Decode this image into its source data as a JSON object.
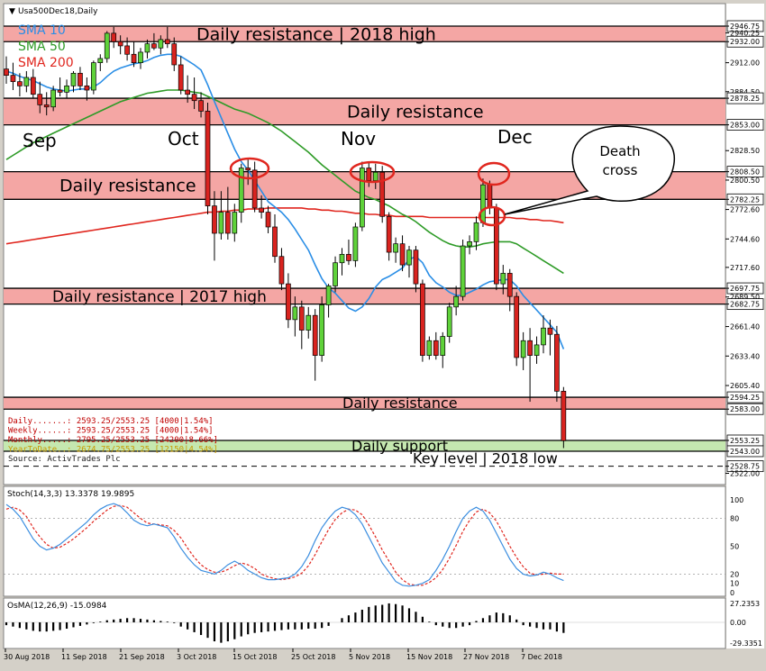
{
  "window_title": "Usa500Dec18,Daily",
  "colors": {
    "resistance_band": "#f4a6a4",
    "support_band": "#c5e8b0",
    "bull_candle": "#5fd23a",
    "bear_candle": "#d9231f",
    "sma10": "#2a8ee6",
    "sma50": "#2e9b27",
    "sma200": "#e0261e",
    "stoch_main": "#3b8ee0",
    "stoch_signal": "#e0261e",
    "annotation_circle": "#e0261e",
    "level_line": "#000000",
    "info_text": "#c00000"
  },
  "legend": [
    {
      "label": "SMA 10",
      "color": "#2a8ee6"
    },
    {
      "label": "SMA 50",
      "color": "#2e9b27"
    },
    {
      "label": "SMA 200",
      "color": "#e0261e"
    }
  ],
  "info_lines": [
    {
      "text": "Daily.......: 2593.25/2553.25 [4000|1.54%]",
      "color": "#c00000"
    },
    {
      "text": "Weekly......: 2593.25/2553.25 [4000|1.54%]",
      "color": "#c00000"
    },
    {
      "text": "Monthly.....: 2795.25/2553.25 [24200|8.66%]",
      "color": "#c00000"
    },
    {
      "text": "YearToDate..: 2674.75/2553.25 [12150|4.54%]",
      "color": "#c89a00"
    },
    {
      "text": "Source: ActivTrades Plc",
      "color": "#202020"
    }
  ],
  "zones": [
    {
      "label": "Daily resistance  | 2018 high",
      "kind": "resistance",
      "from": 2932,
      "to": 2946.75
    },
    {
      "label": "Daily resistance",
      "kind": "resistance",
      "from": 2853,
      "to": 2878.25
    },
    {
      "label": "Daily resistance",
      "kind": "resistance",
      "from": 2782.25,
      "to": 2808.5
    },
    {
      "label": "Daily resistance | 2017 high",
      "kind": "resistance",
      "from": 2682.75,
      "to": 2697.75
    },
    {
      "label": "Daily resistance",
      "kind": "resistance",
      "from": 2583,
      "to": 2594.25
    },
    {
      "label": "Daily support",
      "kind": "support",
      "from": 2543,
      "to": 2553.25
    }
  ],
  "key_level": {
    "label": "Key level | 2018 low",
    "value": 2528.75
  },
  "month_labels": [
    "Sep",
    "Oct",
    "Nov",
    "Dec"
  ],
  "annotation": {
    "text_line1": "Death",
    "text_line2": "cross"
  },
  "stoch": {
    "label": "Stoch(14,3,3) 13.3378 19.9895",
    "ticks": [
      "100",
      "80",
      "50",
      "20",
      "10",
      "0"
    ]
  },
  "osma": {
    "label": "OsMA(12,26,9) -15.0984",
    "ticks": [
      "27.2353",
      "0.00",
      "-29.3351"
    ]
  },
  "x_labels": [
    "30 Aug 2018",
    "11 Sep 2018",
    "21 Sep 2018",
    "3 Oct 2018",
    "15 Oct 2018",
    "25 Oct 2018",
    "5 Nov 2018",
    "15 Nov 2018",
    "27 Nov 2018",
    "7 Dec 2018"
  ],
  "chart_data": {
    "type": "candlestick",
    "symbol": "Usa500Dec18",
    "timeframe": "Daily",
    "y_axis_labels": [
      "2946.75",
      "2940.25",
      "2932.00",
      "2912.00",
      "2884.50",
      "2878.25",
      "2853.00",
      "2828.50",
      "2808.50",
      "2800.50",
      "2782.25",
      "2772.60",
      "2744.60",
      "2717.60",
      "2697.75",
      "2689.50",
      "2682.75",
      "2661.40",
      "2633.40",
      "2605.40",
      "2594.25",
      "2583.00",
      "2553.25",
      "2543.00",
      "2528.75",
      "2522.00"
    ],
    "ylim": [
      2522,
      2956
    ],
    "candles": [
      {
        "o": 2906,
        "h": 2918,
        "l": 2892,
        "c": 2900
      },
      {
        "o": 2900,
        "h": 2912,
        "l": 2886,
        "c": 2894
      },
      {
        "o": 2894,
        "h": 2902,
        "l": 2880,
        "c": 2890
      },
      {
        "o": 2890,
        "h": 2904,
        "l": 2884,
        "c": 2898
      },
      {
        "o": 2898,
        "h": 2906,
        "l": 2878,
        "c": 2882
      },
      {
        "o": 2882,
        "h": 2894,
        "l": 2864,
        "c": 2872
      },
      {
        "o": 2872,
        "h": 2884,
        "l": 2862,
        "c": 2870
      },
      {
        "o": 2870,
        "h": 2890,
        "l": 2866,
        "c": 2886
      },
      {
        "o": 2886,
        "h": 2898,
        "l": 2880,
        "c": 2884
      },
      {
        "o": 2884,
        "h": 2896,
        "l": 2878,
        "c": 2890
      },
      {
        "o": 2890,
        "h": 2904,
        "l": 2884,
        "c": 2902
      },
      {
        "o": 2902,
        "h": 2908,
        "l": 2886,
        "c": 2890
      },
      {
        "o": 2890,
        "h": 2898,
        "l": 2876,
        "c": 2886
      },
      {
        "o": 2886,
        "h": 2914,
        "l": 2882,
        "c": 2912
      },
      {
        "o": 2912,
        "h": 2920,
        "l": 2904,
        "c": 2916
      },
      {
        "o": 2916,
        "h": 2942,
        "l": 2912,
        "c": 2940
      },
      {
        "o": 2940,
        "h": 2946,
        "l": 2926,
        "c": 2932
      },
      {
        "o": 2932,
        "h": 2938,
        "l": 2920,
        "c": 2928
      },
      {
        "o": 2928,
        "h": 2936,
        "l": 2914,
        "c": 2920
      },
      {
        "o": 2920,
        "h": 2932,
        "l": 2908,
        "c": 2912
      },
      {
        "o": 2912,
        "h": 2926,
        "l": 2906,
        "c": 2922
      },
      {
        "o": 2922,
        "h": 2934,
        "l": 2916,
        "c": 2930
      },
      {
        "o": 2930,
        "h": 2940,
        "l": 2924,
        "c": 2926
      },
      {
        "o": 2926,
        "h": 2938,
        "l": 2920,
        "c": 2934
      },
      {
        "o": 2934,
        "h": 2946,
        "l": 2926,
        "c": 2930
      },
      {
        "o": 2930,
        "h": 2936,
        "l": 2904,
        "c": 2910
      },
      {
        "o": 2910,
        "h": 2918,
        "l": 2882,
        "c": 2886
      },
      {
        "o": 2886,
        "h": 2900,
        "l": 2874,
        "c": 2882
      },
      {
        "o": 2882,
        "h": 2898,
        "l": 2868,
        "c": 2876
      },
      {
        "o": 2876,
        "h": 2884,
        "l": 2860,
        "c": 2866
      },
      {
        "o": 2866,
        "h": 2874,
        "l": 2768,
        "c": 2776
      },
      {
        "o": 2776,
        "h": 2790,
        "l": 2724,
        "c": 2750
      },
      {
        "o": 2750,
        "h": 2790,
        "l": 2744,
        "c": 2770
      },
      {
        "o": 2770,
        "h": 2794,
        "l": 2744,
        "c": 2750
      },
      {
        "o": 2750,
        "h": 2778,
        "l": 2742,
        "c": 2770
      },
      {
        "o": 2770,
        "h": 2816,
        "l": 2760,
        "c": 2812
      },
      {
        "o": 2812,
        "h": 2820,
        "l": 2796,
        "c": 2810
      },
      {
        "o": 2810,
        "h": 2818,
        "l": 2770,
        "c": 2774
      },
      {
        "o": 2774,
        "h": 2786,
        "l": 2764,
        "c": 2770
      },
      {
        "o": 2770,
        "h": 2776,
        "l": 2750,
        "c": 2756
      },
      {
        "o": 2756,
        "h": 2768,
        "l": 2722,
        "c": 2728
      },
      {
        "o": 2728,
        "h": 2736,
        "l": 2696,
        "c": 2702
      },
      {
        "o": 2702,
        "h": 2712,
        "l": 2660,
        "c": 2668
      },
      {
        "o": 2668,
        "h": 2690,
        "l": 2652,
        "c": 2680
      },
      {
        "o": 2680,
        "h": 2686,
        "l": 2640,
        "c": 2658
      },
      {
        "o": 2658,
        "h": 2680,
        "l": 2650,
        "c": 2672
      },
      {
        "o": 2672,
        "h": 2678,
        "l": 2610,
        "c": 2634
      },
      {
        "o": 2634,
        "h": 2690,
        "l": 2628,
        "c": 2682
      },
      {
        "o": 2682,
        "h": 2702,
        "l": 2670,
        "c": 2700
      },
      {
        "o": 2700,
        "h": 2728,
        "l": 2694,
        "c": 2722
      },
      {
        "o": 2722,
        "h": 2736,
        "l": 2710,
        "c": 2730
      },
      {
        "o": 2730,
        "h": 2744,
        "l": 2720,
        "c": 2724
      },
      {
        "o": 2724,
        "h": 2760,
        "l": 2718,
        "c": 2756
      },
      {
        "o": 2756,
        "h": 2818,
        "l": 2752,
        "c": 2812
      },
      {
        "o": 2812,
        "h": 2818,
        "l": 2794,
        "c": 2800
      },
      {
        "o": 2800,
        "h": 2816,
        "l": 2792,
        "c": 2808
      },
      {
        "o": 2808,
        "h": 2814,
        "l": 2760,
        "c": 2766
      },
      {
        "o": 2766,
        "h": 2770,
        "l": 2724,
        "c": 2732
      },
      {
        "o": 2732,
        "h": 2746,
        "l": 2722,
        "c": 2740
      },
      {
        "o": 2740,
        "h": 2748,
        "l": 2714,
        "c": 2720
      },
      {
        "o": 2720,
        "h": 2738,
        "l": 2708,
        "c": 2734
      },
      {
        "o": 2734,
        "h": 2738,
        "l": 2694,
        "c": 2702
      },
      {
        "o": 2702,
        "h": 2706,
        "l": 2628,
        "c": 2634
      },
      {
        "o": 2634,
        "h": 2652,
        "l": 2630,
        "c": 2648
      },
      {
        "o": 2648,
        "h": 2656,
        "l": 2630,
        "c": 2634
      },
      {
        "o": 2634,
        "h": 2656,
        "l": 2622,
        "c": 2652
      },
      {
        "o": 2652,
        "h": 2684,
        "l": 2646,
        "c": 2680
      },
      {
        "o": 2680,
        "h": 2700,
        "l": 2672,
        "c": 2690
      },
      {
        "o": 2690,
        "h": 2744,
        "l": 2686,
        "c": 2738
      },
      {
        "o": 2738,
        "h": 2748,
        "l": 2730,
        "c": 2742
      },
      {
        "o": 2742,
        "h": 2766,
        "l": 2734,
        "c": 2760
      },
      {
        "o": 2760,
        "h": 2802,
        "l": 2756,
        "c": 2796
      },
      {
        "o": 2796,
        "h": 2800,
        "l": 2768,
        "c": 2774
      },
      {
        "o": 2774,
        "h": 2778,
        "l": 2696,
        "c": 2702
      },
      {
        "o": 2702,
        "h": 2720,
        "l": 2692,
        "c": 2712
      },
      {
        "o": 2712,
        "h": 2716,
        "l": 2676,
        "c": 2690
      },
      {
        "o": 2690,
        "h": 2694,
        "l": 2624,
        "c": 2632
      },
      {
        "o": 2632,
        "h": 2656,
        "l": 2620,
        "c": 2648
      },
      {
        "o": 2648,
        "h": 2660,
        "l": 2590,
        "c": 2634
      },
      {
        "o": 2634,
        "h": 2652,
        "l": 2626,
        "c": 2644
      },
      {
        "o": 2644,
        "h": 2672,
        "l": 2636,
        "c": 2660
      },
      {
        "o": 2660,
        "h": 2668,
        "l": 2634,
        "c": 2654
      },
      {
        "o": 2654,
        "h": 2662,
        "l": 2590,
        "c": 2600
      },
      {
        "o": 2600,
        "h": 2604,
        "l": 2546,
        "c": 2553
      }
    ],
    "sma10": [
      2904,
      2902,
      2899,
      2897,
      2895,
      2892,
      2889,
      2887,
      2886,
      2885,
      2886,
      2887,
      2887,
      2889,
      2893,
      2899,
      2904,
      2907,
      2909,
      2911,
      2912,
      2914,
      2917,
      2919,
      2920,
      2920,
      2918,
      2914,
      2910,
      2905,
      2891,
      2875,
      2860,
      2845,
      2830,
      2818,
      2810,
      2800,
      2790,
      2780,
      2775,
      2770,
      2763,
      2754,
      2744,
      2734,
      2720,
      2707,
      2698,
      2693,
      2686,
      2679,
      2676,
      2680,
      2688,
      2699,
      2706,
      2709,
      2713,
      2717,
      2725,
      2728,
      2722,
      2710,
      2703,
      2699,
      2694,
      2691,
      2691,
      2694,
      2697,
      2701,
      2704,
      2705,
      2706,
      2706,
      2700,
      2691,
      2684,
      2677,
      2670,
      2663,
      2656,
      2640
    ],
    "sma50": [
      2820,
      2824,
      2828,
      2832,
      2836,
      2839,
      2842,
      2845,
      2848,
      2851,
      2854,
      2857,
      2860,
      2863,
      2866,
      2869,
      2872,
      2875,
      2877,
      2879,
      2881,
      2883,
      2884,
      2885,
      2886,
      2886,
      2886,
      2885,
      2884,
      2883,
      2880,
      2877,
      2874,
      2871,
      2868,
      2866,
      2864,
      2861,
      2858,
      2855,
      2851,
      2847,
      2842,
      2837,
      2832,
      2827,
      2821,
      2815,
      2810,
      2805,
      2800,
      2795,
      2790,
      2787,
      2784,
      2782,
      2779,
      2776,
      2772,
      2768,
      2765,
      2761,
      2756,
      2751,
      2747,
      2743,
      2740,
      2738,
      2737,
      2737,
      2738,
      2740,
      2741,
      2742,
      2742,
      2742,
      2740,
      2736,
      2732,
      2728,
      2724,
      2720,
      2716,
      2712
    ],
    "sma200": [
      2740,
      2741,
      2742,
      2743,
      2744,
      2745,
      2746,
      2747,
      2748,
      2749,
      2750,
      2751,
      2752,
      2753,
      2754,
      2755,
      2756,
      2757,
      2758,
      2759,
      2760,
      2761,
      2762,
      2763,
      2764,
      2765,
      2766,
      2767,
      2768,
      2769,
      2770,
      2770,
      2771,
      2771,
      2772,
      2772,
      2773,
      2773,
      2773,
      2774,
      2774,
      2774,
      2774,
      2774,
      2774,
      2773,
      2773,
      2772,
      2772,
      2771,
      2771,
      2770,
      2769,
      2769,
      2768,
      2768,
      2767,
      2767,
      2766,
      2766,
      2766,
      2766,
      2766,
      2765,
      2765,
      2765,
      2765,
      2765,
      2765,
      2765,
      2765,
      2765,
      2765,
      2765,
      2765,
      2765,
      2764,
      2764,
      2763,
      2763,
      2762,
      2762,
      2761,
      2760
    ],
    "stoch_main": [
      95,
      90,
      82,
      70,
      58,
      50,
      46,
      48,
      52,
      58,
      64,
      70,
      76,
      84,
      90,
      94,
      96,
      93,
      86,
      78,
      74,
      72,
      74,
      72,
      70,
      60,
      48,
      38,
      30,
      24,
      22,
      20,
      24,
      30,
      34,
      30,
      24,
      20,
      16,
      14,
      14,
      15,
      16,
      20,
      28,
      40,
      56,
      70,
      80,
      88,
      92,
      90,
      84,
      74,
      60,
      46,
      32,
      22,
      12,
      8,
      7,
      8,
      10,
      14,
      24,
      36,
      50,
      66,
      80,
      88,
      92,
      88,
      78,
      64,
      50,
      36,
      26,
      20,
      18,
      19,
      22,
      20,
      16,
      13
    ],
    "stoch_signal": [
      90,
      92,
      89,
      82,
      70,
      60,
      52,
      48,
      49,
      53,
      58,
      64,
      70,
      77,
      83,
      89,
      93,
      94,
      92,
      86,
      80,
      75,
      74,
      73,
      72,
      67,
      59,
      48,
      38,
      30,
      25,
      22,
      22,
      25,
      29,
      32,
      30,
      26,
      20,
      17,
      15,
      14,
      15,
      17,
      21,
      29,
      41,
      55,
      68,
      79,
      86,
      90,
      89,
      84,
      73,
      60,
      46,
      34,
      22,
      14,
      9,
      8,
      8,
      11,
      16,
      25,
      37,
      51,
      66,
      78,
      87,
      90,
      86,
      77,
      64,
      50,
      38,
      28,
      21,
      19,
      20,
      21,
      20,
      20
    ],
    "osma": [
      -4,
      -6,
      -8,
      -10,
      -12,
      -13,
      -13,
      -12,
      -11,
      -9,
      -7,
      -5,
      -3,
      -1,
      1,
      3,
      4,
      5,
      6,
      6,
      5,
      4,
      3,
      2,
      1,
      -1,
      -6,
      -10,
      -14,
      -18,
      -22,
      -27,
      -29,
      -27,
      -24,
      -20,
      -17,
      -15,
      -14,
      -13,
      -12,
      -11,
      -10,
      -10,
      -10,
      -9,
      -9,
      -8,
      -5,
      0,
      6,
      10,
      14,
      18,
      22,
      24,
      25,
      27,
      26,
      24,
      20,
      15,
      8,
      1,
      -4,
      -6,
      -8,
      -8,
      -6,
      -4,
      2,
      6,
      10,
      14,
      13,
      10,
      4,
      -4,
      -6,
      -8,
      -10,
      -10,
      -13,
      -15
    ]
  }
}
